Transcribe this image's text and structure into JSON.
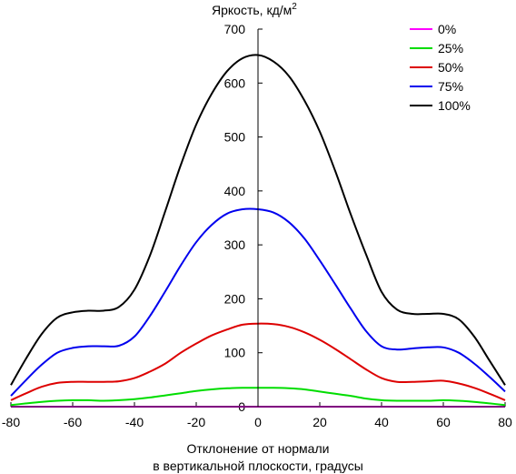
{
  "chart_data": {
    "type": "line",
    "title": "",
    "ylabel": "Яркость, кд/м",
    "ylabel_sup": "2",
    "xlabel_line1": "Отклонение от нормали",
    "xlabel_line2": "в вертикальной плоскости, градусы",
    "xlim": [
      -80,
      80
    ],
    "ylim": [
      0,
      700
    ],
    "xticks": [
      -80,
      -60,
      -40,
      -20,
      0,
      20,
      40,
      60,
      80
    ],
    "yticks": [
      0,
      100,
      200,
      300,
      400,
      500,
      600,
      700
    ],
    "grid": false,
    "legend_position": "top-right",
    "x": [
      -80,
      -75,
      -70,
      -65,
      -60,
      -55,
      -50,
      -45,
      -40,
      -35,
      -30,
      -25,
      -20,
      -15,
      -10,
      -5,
      0,
      5,
      10,
      15,
      20,
      25,
      30,
      35,
      40,
      45,
      50,
      55,
      60,
      65,
      70,
      75,
      80
    ],
    "series": [
      {
        "name": "0%",
        "color": "#ff00ff",
        "values": [
          0,
          0,
          0,
          0,
          0,
          0,
          0,
          0,
          0,
          0,
          0,
          0,
          0,
          0,
          0,
          0,
          0,
          0,
          0,
          0,
          0,
          0,
          0,
          0,
          0,
          0,
          0,
          0,
          0,
          0,
          0,
          0,
          0
        ]
      },
      {
        "name": "25%",
        "color": "#00dd00",
        "values": [
          3,
          6,
          9,
          11,
          12,
          12,
          11,
          12,
          14,
          17,
          21,
          25,
          29,
          32,
          34,
          35,
          35,
          35,
          34,
          32,
          28,
          24,
          20,
          15,
          12,
          11,
          11,
          11,
          12,
          11,
          9,
          6,
          3
        ]
      },
      {
        "name": "50%",
        "color": "#dd0000",
        "values": [
          12,
          25,
          37,
          44,
          46,
          46,
          46,
          47,
          53,
          65,
          80,
          100,
          117,
          132,
          143,
          152,
          154,
          153,
          148,
          138,
          124,
          107,
          88,
          69,
          53,
          46,
          46,
          47,
          48,
          43,
          35,
          24,
          12
        ]
      },
      {
        "name": "75%",
        "color": "#0000ee",
        "values": [
          20,
          50,
          78,
          100,
          109,
          112,
          112,
          113,
          130,
          168,
          214,
          262,
          305,
          337,
          358,
          366,
          366,
          360,
          342,
          312,
          271,
          227,
          182,
          140,
          112,
          106,
          108,
          110,
          110,
          100,
          80,
          55,
          28
        ]
      },
      {
        "name": "100%",
        "color": "#000000",
        "values": [
          40,
          90,
          135,
          165,
          175,
          178,
          178,
          185,
          217,
          280,
          363,
          448,
          523,
          580,
          622,
          646,
          652,
          640,
          613,
          568,
          510,
          437,
          357,
          282,
          213,
          180,
          172,
          172,
          172,
          162,
          130,
          85,
          40
        ]
      }
    ]
  }
}
